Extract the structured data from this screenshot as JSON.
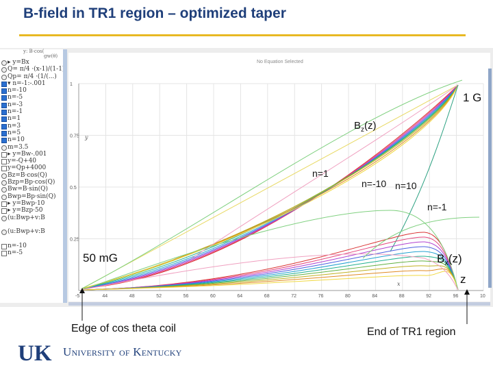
{
  "slide": {
    "title": "B-field in TR1 region – optimized taper"
  },
  "app": {
    "status": "No Equation Selected",
    "equations": [
      {
        "text": "▸ y=Bx",
        "state": "eq"
      },
      {
        "text": "Q= π/4 ·(x-1)/(1-1)",
        "state": "eq"
      },
      {
        "text": "Qp= π/4 ·(1/(...)",
        "state": "eq"
      },
      {
        "text": "▾ n=-1:-.001",
        "state": "on"
      },
      {
        "text": "n=-10",
        "state": "on"
      },
      {
        "text": "n=-5",
        "state": "on"
      },
      {
        "text": "n=-3",
        "state": "on"
      },
      {
        "text": "n=-1",
        "state": "on"
      },
      {
        "text": "n=1",
        "state": "on"
      },
      {
        "text": "n=3",
        "state": "on"
      },
      {
        "text": "n=5",
        "state": "on"
      },
      {
        "text": "n=10",
        "state": "on"
      },
      {
        "text": "m=3.5",
        "state": "eq"
      },
      {
        "text": "▸ y=Bw-.001",
        "state": "off"
      },
      {
        "text": "y=-Q+40",
        "state": "off"
      },
      {
        "text": "y=Qp+4000",
        "state": "off"
      },
      {
        "text": "Bz=B·cos(Q)",
        "state": "eq"
      },
      {
        "text": "Bzp=Bp·cos(Q)",
        "state": "eq"
      },
      {
        "text": "Bw=B·sin(Q)",
        "state": "eq"
      },
      {
        "text": "Bwp=Bp·sin(Q)",
        "state": "eq"
      },
      {
        "text": "▸ y=Bwp·10",
        "state": "off"
      },
      {
        "text": "▸ y=Bzp·50",
        "state": "off"
      },
      {
        "text": "(u:Bwp+v:B",
        "state": "eq"
      },
      {
        "text": "",
        "state": "none"
      },
      {
        "text": "(u:Bwp+v:B",
        "state": "eq"
      },
      {
        "text": "",
        "state": "none"
      },
      {
        "text": "n=-10",
        "state": "off"
      },
      {
        "text": "n=-5",
        "state": "off"
      }
    ],
    "header_snippets": [
      "y: B·cos(",
      "gw(θ)"
    ],
    "y_axis_labels": [
      "1",
      "0.75",
      "0.5",
      "0.25"
    ],
    "y_axis_name": "y",
    "x_axis_name": "x",
    "x_ticks": [
      "-5",
      "44",
      "48",
      "52",
      "56",
      "60",
      "64",
      "68",
      "72",
      "76",
      "80",
      "84",
      "88",
      "92",
      "96",
      "10"
    ]
  },
  "annotations": {
    "one_g": "1 G",
    "bz_main": "B",
    "bz_sub": "z",
    "bz_tail": "(z)",
    "n_1": "n=1",
    "n_minus10": "n=-10",
    "n_10": "n=10",
    "n_minus1": "n=-1",
    "fifty_mg": "50 mG",
    "bx_main": "B",
    "bx_sub": "x",
    "bx_tail": "(z)",
    "z": "z",
    "edge": "Edge of cos theta coil",
    "end": "End of TR1 region"
  },
  "logo": {
    "mark": "UK",
    "university": "University of Kentucky"
  },
  "colors": {
    "title": "#1f3f7a",
    "rule": "#e8b923",
    "logo": "#1f3f7a"
  }
}
